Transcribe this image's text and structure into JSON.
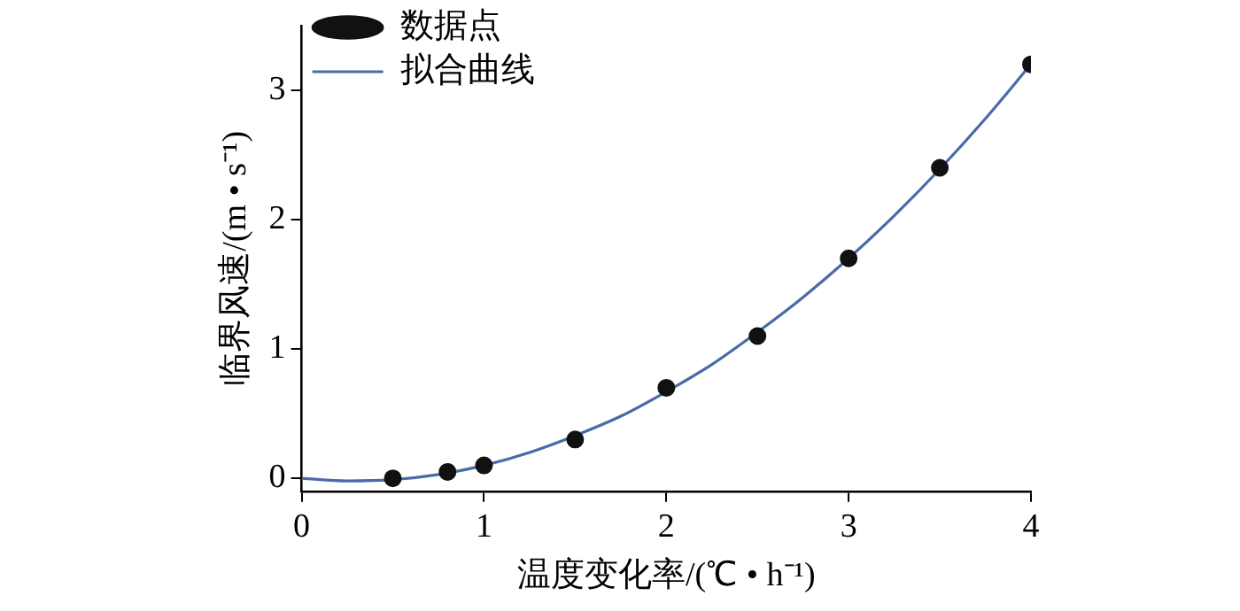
{
  "chart_data": {
    "type": "scatter",
    "xlabel": "温度变化率/(℃ • h⁻¹)",
    "ylabel": "临界风速/(m • s⁻¹)",
    "xlim": [
      0,
      4
    ],
    "xticks": [
      0,
      1,
      2,
      3,
      4
    ],
    "ylim": [
      -0.1,
      3.5
    ],
    "yticks": [
      0,
      1,
      2,
      3
    ],
    "grid": false,
    "legend": "top left",
    "series": [
      {
        "name": "数据点",
        "type": "scatter",
        "marker": "circle",
        "color": "#111111",
        "x": [
          0.5,
          0.8,
          1,
          1.5,
          2,
          2.5,
          3,
          3.5,
          4
        ],
        "values": [
          0,
          0.05,
          0.1,
          0.3,
          0.7,
          1.1,
          1.7,
          2.4,
          3.2
        ]
      },
      {
        "name": "拟合曲线",
        "type": "line",
        "marker": "none",
        "color": "#4a6aa8",
        "line_style": "solid",
        "x": [
          0,
          0.25,
          0.5,
          0.75,
          1,
          1.25,
          1.5,
          1.75,
          2,
          2.25,
          2.5,
          2.75,
          3,
          3.25,
          3.5,
          3.75,
          4
        ],
        "values": [
          0,
          -0.02,
          -0.01,
          0.03,
          0.1,
          0.2,
          0.33,
          0.48,
          0.67,
          0.88,
          1.13,
          1.4,
          1.7,
          2.03,
          2.39,
          2.78,
          3.2
        ]
      }
    ]
  }
}
